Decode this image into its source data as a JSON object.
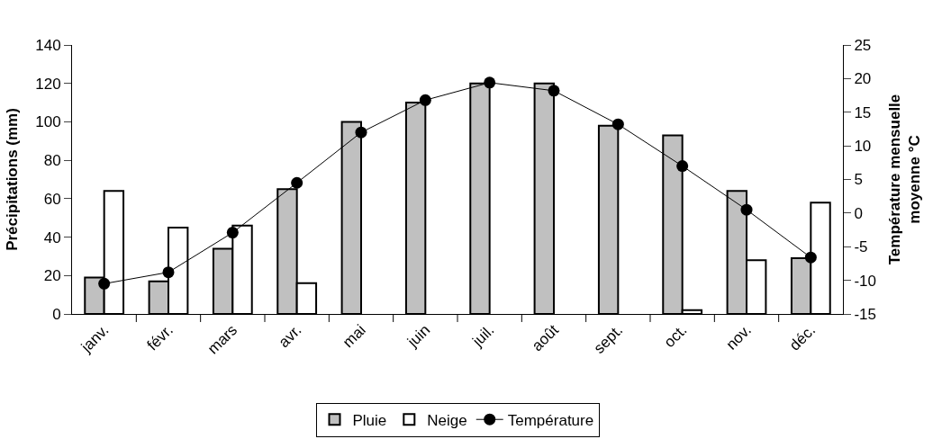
{
  "chart_data": {
    "type": "bar",
    "categories": [
      "janv.",
      "févr.",
      "mars",
      "avr.",
      "mai",
      "juin",
      "juil.",
      "août",
      "sept.",
      "oct.",
      "nov.",
      "déc."
    ],
    "ylabel": "Précipitations (mm)",
    "y2label": "Température mensuelle moyenne °C",
    "ylim": [
      0,
      140
    ],
    "yticks": [
      0,
      20,
      40,
      60,
      80,
      100,
      120,
      140
    ],
    "y2lim": [
      -15,
      25
    ],
    "y2ticks": [
      -15,
      -10,
      -5,
      0,
      5,
      10,
      15,
      20,
      25
    ],
    "series": [
      {
        "name": "Pluie",
        "color": "#c0c0c0",
        "values": [
          19,
          17,
          34,
          65,
          100,
          110,
          120,
          120,
          98,
          93,
          64,
          29
        ]
      },
      {
        "name": "Neige",
        "color": "#ffffff",
        "values": [
          64,
          45,
          46,
          16,
          0,
          0,
          0,
          0,
          0,
          2,
          28,
          58
        ]
      },
      {
        "name": "Température",
        "type": "line",
        "axis": "y2",
        "color": "#000000",
        "marker": "circle",
        "line_style": "solid",
        "values": [
          -10.5,
          -8.8,
          -2.9,
          4.5,
          12,
          16.8,
          19.4,
          18.2,
          13.2,
          7,
          0.5,
          -6.6
        ]
      }
    ],
    "legend": "bottom"
  }
}
